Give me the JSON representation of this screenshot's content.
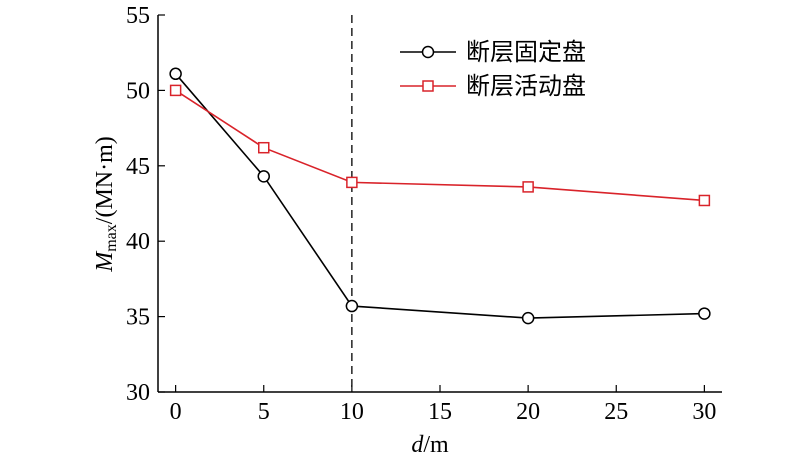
{
  "chart_data": {
    "type": "line",
    "x": [
      0,
      5,
      10,
      20,
      30
    ],
    "xlim": [
      -1,
      31
    ],
    "ylim": [
      30,
      55
    ],
    "xticks": [
      0,
      5,
      10,
      15,
      20,
      25,
      30
    ],
    "yticks": [
      30,
      35,
      40,
      45,
      50,
      55
    ],
    "xlabel": {
      "var": "d",
      "unit": "/m"
    },
    "ylabel": {
      "var": "M",
      "sub": "max",
      "unit": "/(MN·m)"
    },
    "grid": false,
    "legend_position": "top-right",
    "reference_line": {
      "x": 10,
      "style": "dashed"
    },
    "series": [
      {
        "name": "断层固定盘",
        "marker": "circle",
        "color": "#000000",
        "values": [
          51.1,
          44.3,
          35.7,
          34.9,
          35.2
        ]
      },
      {
        "name": "断层活动盘",
        "marker": "square",
        "color": "#d9232a",
        "values": [
          50.0,
          46.2,
          43.9,
          43.6,
          42.7
        ]
      }
    ]
  }
}
